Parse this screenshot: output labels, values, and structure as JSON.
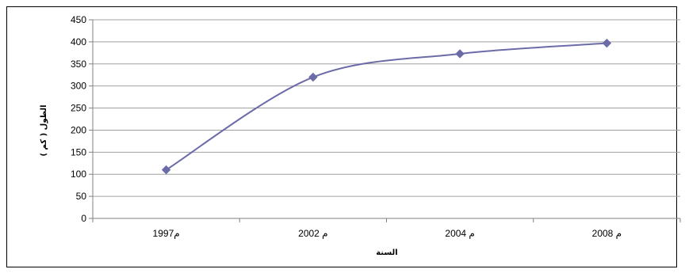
{
  "chart_data": {
    "type": "line",
    "title": "",
    "xlabel": "السنة",
    "ylabel": "الطول ( كم )",
    "categories": [
      "1997م",
      "2002 م",
      "2004 م",
      "2008 م"
    ],
    "series": [
      {
        "values": [
          110,
          320,
          373,
          397
        ],
        "color": "#6b6ba8"
      }
    ],
    "ylim": [
      0,
      450
    ],
    "yticks": [
      0,
      50,
      100,
      150,
      200,
      250,
      300,
      350,
      400,
      450
    ],
    "grid": true,
    "legend": "none",
    "colors": {
      "gridline": "#a0a0a0",
      "axis": "#808080",
      "line": "#6b6ba8"
    }
  }
}
